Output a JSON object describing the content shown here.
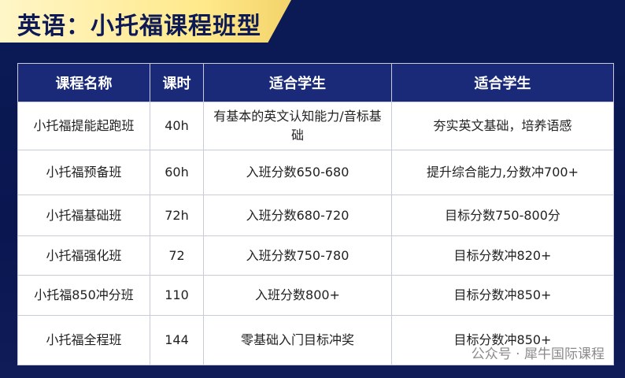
{
  "header": {
    "title": "英语：小托福课程班型"
  },
  "table": {
    "headers": [
      "课程名称",
      "课时",
      "适合学生",
      "适合学生"
    ],
    "rows": [
      [
        "小托福提能起跑班",
        "40h",
        "有基本的英文认知能力/音标基础",
        "夯实英文基础，培养语感"
      ],
      [
        "小托福预备班",
        "60h",
        "入班分数650-680",
        "提升综合能力,分数冲700+"
      ],
      [
        "小托福基础班",
        "72h",
        "入班分数680-720",
        "目标分数750-800分"
      ],
      [
        "小托福强化班",
        "72",
        "入班分数750-780",
        "目标分数冲820+"
      ],
      [
        "小托福850冲分班",
        "110",
        "入班分数800+",
        "目标分数冲850+"
      ],
      [
        "小托福全程班",
        "144",
        "零基础入门目标冲奖",
        "目标分数冲850+"
      ]
    ]
  },
  "watermark": "公众号 · 犀牛国际课程"
}
